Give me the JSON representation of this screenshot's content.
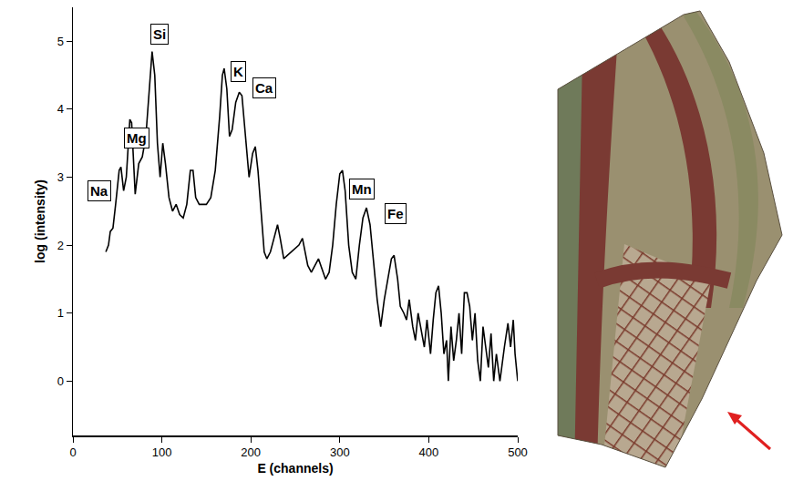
{
  "chart_data": {
    "type": "line",
    "color": "#000000",
    "line_style": "solid",
    "x_label": "E (channels)",
    "y_label": "log (intensity)",
    "xlim": [
      0,
      500
    ],
    "xticks": [
      0,
      100,
      200,
      300,
      400,
      500
    ],
    "ylim": [
      -0.8,
      5.5
    ],
    "yticks": [
      0,
      1,
      2,
      3,
      4,
      5
    ],
    "grid": false,
    "x": [
      37,
      40,
      42,
      45,
      48,
      52,
      54,
      57,
      60,
      64,
      66,
      68,
      70,
      74,
      78,
      82,
      86,
      89,
      92,
      95,
      98,
      101,
      104,
      108,
      112,
      116,
      120,
      124,
      128,
      132,
      135,
      138,
      142,
      146,
      150,
      155,
      160,
      165,
      168,
      170,
      173,
      176,
      179,
      183,
      187,
      190,
      194,
      198,
      202,
      205,
      208,
      212,
      215,
      218,
      222,
      226,
      230,
      233,
      237,
      241,
      245,
      250,
      254,
      258,
      261,
      264,
      268,
      272,
      276,
      280,
      284,
      288,
      292,
      296,
      300,
      303,
      306,
      310,
      314,
      318,
      322,
      326,
      330,
      334,
      338,
      342,
      346,
      350,
      354,
      358,
      361,
      365,
      368,
      372,
      375,
      378,
      382,
      385,
      388,
      392,
      395,
      398,
      402,
      405,
      408,
      411,
      414,
      417,
      420,
      422,
      425,
      428,
      431,
      434,
      437,
      440,
      443,
      446,
      449,
      452,
      455,
      458,
      461,
      464,
      467,
      470,
      473,
      476,
      480,
      485,
      489,
      492,
      495,
      497,
      500
    ],
    "values": [
      1.9,
      2.0,
      2.2,
      2.25,
      2.6,
      3.1,
      3.15,
      2.8,
      3.0,
      3.85,
      3.8,
      3.2,
      2.75,
      3.2,
      3.3,
      3.6,
      4.3,
      4.85,
      4.5,
      3.5,
      3.0,
      3.5,
      3.2,
      2.7,
      2.5,
      2.6,
      2.45,
      2.4,
      2.6,
      3.1,
      3.1,
      2.7,
      2.6,
      2.6,
      2.6,
      2.7,
      3.1,
      3.9,
      4.5,
      4.6,
      4.3,
      3.6,
      3.7,
      4.1,
      4.25,
      4.2,
      3.6,
      3.0,
      3.35,
      3.45,
      3.1,
      2.4,
      1.9,
      1.8,
      1.9,
      2.1,
      2.3,
      2.1,
      1.8,
      1.85,
      1.9,
      1.95,
      2.0,
      2.1,
      1.9,
      1.7,
      1.6,
      1.7,
      1.8,
      1.65,
      1.5,
      1.6,
      2.0,
      2.6,
      3.05,
      3.1,
      2.8,
      2.0,
      1.6,
      1.5,
      2.0,
      2.4,
      2.55,
      2.3,
      1.7,
      1.2,
      0.8,
      1.2,
      1.5,
      1.8,
      1.85,
      1.5,
      1.1,
      1.0,
      0.9,
      1.2,
      0.8,
      0.6,
      1.0,
      0.7,
      0.5,
      0.9,
      0.4,
      0.9,
      1.3,
      1.4,
      1.0,
      0.4,
      0.6,
      0.0,
      0.8,
      0.3,
      0.6,
      1.0,
      0.4,
      1.3,
      1.3,
      1.1,
      0.6,
      1.0,
      0.3,
      0.0,
      0.8,
      0.5,
      0.2,
      0.7,
      0.0,
      0.4,
      0.0,
      0.5,
      0.85,
      0.5,
      0.9,
      0.4,
      0.0
    ],
    "annotations": [
      {
        "text": "Na",
        "x": 30,
        "y": 2.8
      },
      {
        "text": "Mg",
        "x": 72,
        "y": 3.57
      },
      {
        "text": "Si",
        "x": 97,
        "y": 5.1
      },
      {
        "text": "K",
        "x": 186,
        "y": 4.55
      },
      {
        "text": "Ca",
        "x": 215,
        "y": 4.31
      },
      {
        "text": "Mn",
        "x": 325,
        "y": 2.83
      },
      {
        "text": "Fe",
        "x": 363,
        "y": 2.47
      }
    ]
  }
}
